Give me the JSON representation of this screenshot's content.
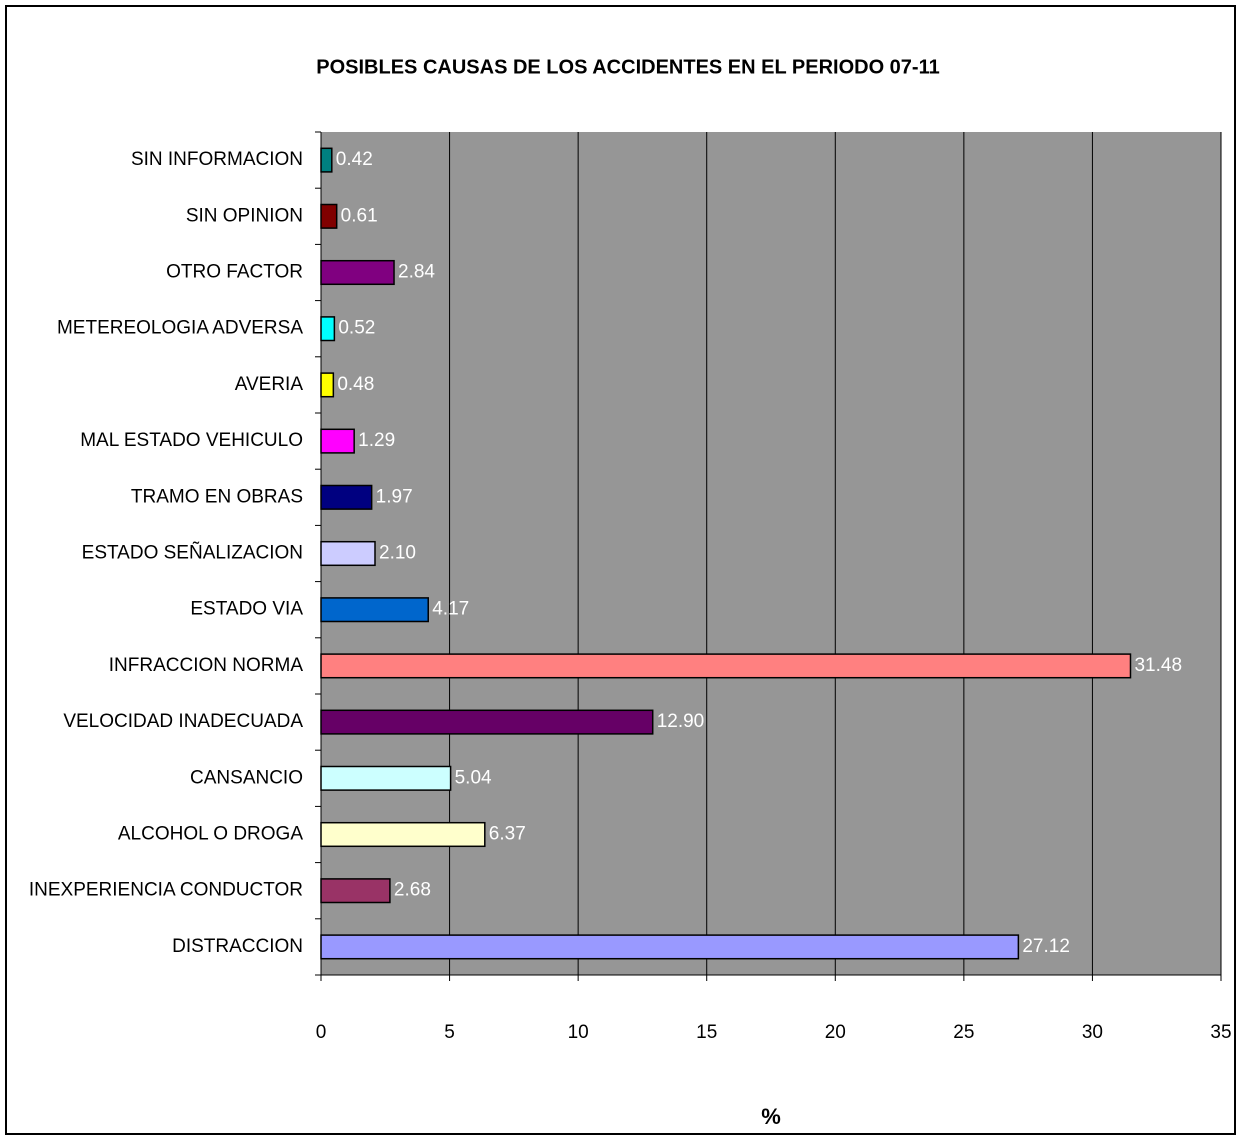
{
  "chart_data": {
    "type": "bar",
    "orientation": "horizontal",
    "title": "POSIBLES CAUSAS DE LOS ACCIDENTES EN EL PERIODO 07-11",
    "x_label": "%",
    "categories": [
      "DISTRACCION",
      "INEXPERIENCIA CONDUCTOR",
      "ALCOHOL O DROGA",
      "CANSANCIO",
      "VELOCIDAD INADECUADA",
      "INFRACCION NORMA",
      "ESTADO VIA",
      "ESTADO SEÑALIZACION",
      "TRAMO EN OBRAS",
      "MAL ESTADO VEHICULO",
      "AVERIA",
      "METEREOLOGIA ADVERSA",
      "OTRO FACTOR",
      "SIN OPINION",
      "SIN INFORMACION"
    ],
    "values": [
      27.12,
      2.68,
      6.37,
      5.04,
      12.9,
      31.48,
      4.17,
      2.1,
      1.97,
      1.29,
      0.48,
      0.52,
      2.84,
      0.61,
      0.42
    ],
    "value_labels": [
      "27.12",
      "2.68",
      "6.37",
      "5.04",
      "12.90",
      "31.48",
      "4.17",
      "2.10",
      "1.97",
      "1.29",
      "0.48",
      "0.52",
      "2.84",
      "0.61",
      "0.42"
    ],
    "colors": [
      "#9999ff",
      "#993366",
      "#ffffcc",
      "#ccffff",
      "#660066",
      "#ff8080",
      "#0066cc",
      "#ccccff",
      "#000080",
      "#ff00ff",
      "#ffff00",
      "#00ffff",
      "#800080",
      "#800000",
      "#008080"
    ],
    "xlim": [
      0,
      35
    ],
    "xticks": [
      0,
      5,
      10,
      15,
      20,
      25,
      30,
      35
    ],
    "grid": true
  }
}
